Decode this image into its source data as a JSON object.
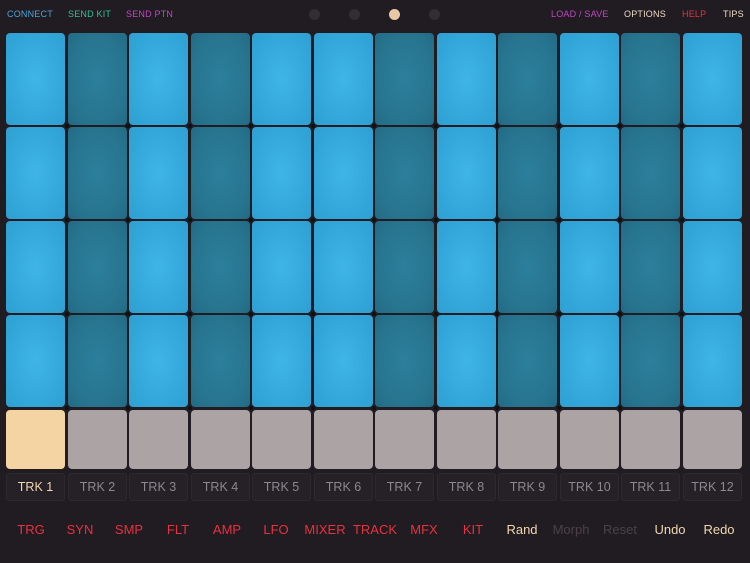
{
  "colors": {
    "background": "#211b22",
    "connect": "#4aa3d8",
    "send_kit": "#35c08e",
    "send_ptn": "#c247c8",
    "load_save": "#c247c8",
    "options": "#eadbc2",
    "help": "#e8323e",
    "tips": "#eadbc2",
    "pad_light": "#32a6d9",
    "pad_dark": "#27748f",
    "trigger": "#aba3a4",
    "trigger_active": "#f4d4a3",
    "menu_red": "#e8323e",
    "menu_cream": "#f0d7b0",
    "menu_disabled": "#4a4248"
  },
  "header": {
    "connect": "CONNECT",
    "send_kit": "SEND KIT",
    "send_ptn": "SEND PTN",
    "load_save": "LOAD / SAVE",
    "options": "OPTIONS",
    "help": "HELP",
    "tips": "TIPS"
  },
  "page_indicator": {
    "count": 4,
    "active_index": 2
  },
  "grid": {
    "rows": 4,
    "columns": 12,
    "column_shades": [
      "light",
      "dark",
      "light",
      "dark",
      "light",
      "light",
      "dark",
      "light",
      "dark",
      "light",
      "dark",
      "light"
    ]
  },
  "triggers": {
    "active_index": 0
  },
  "tracks": {
    "active_index": 0,
    "labels": [
      "TRK 1",
      "TRK 2",
      "TRK 3",
      "TRK 4",
      "TRK 5",
      "TRK 6",
      "TRK 7",
      "TRK 8",
      "TRK 9",
      "TRK 10",
      "TRK 11",
      "TRK 12"
    ]
  },
  "bottom_menu": [
    {
      "label": "TRG",
      "color": "#e8323e"
    },
    {
      "label": "SYN",
      "color": "#e8323e"
    },
    {
      "label": "SMP",
      "color": "#e8323e"
    },
    {
      "label": "FLT",
      "color": "#e8323e"
    },
    {
      "label": "AMP",
      "color": "#e8323e"
    },
    {
      "label": "LFO",
      "color": "#e8323e"
    },
    {
      "label": "MIXER",
      "color": "#e8323e"
    },
    {
      "label": "TRACK",
      "color": "#e8323e"
    },
    {
      "label": "MFX",
      "color": "#e8323e"
    },
    {
      "label": "KIT",
      "color": "#e8323e"
    },
    {
      "label": "Rand",
      "color": "#f0d7b0"
    },
    {
      "label": "Morph",
      "color": "#4a4248"
    },
    {
      "label": "Reset",
      "color": "#4a4248"
    },
    {
      "label": "Undo",
      "color": "#f0d7b0"
    },
    {
      "label": "Redo",
      "color": "#f0d7b0"
    }
  ]
}
